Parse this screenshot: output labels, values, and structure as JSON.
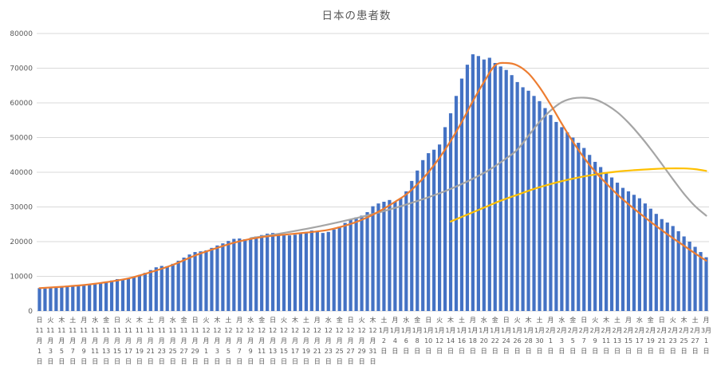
{
  "chart_data": {
    "type": "bar",
    "title": "日本の患者数",
    "ylim": [
      0,
      80000
    ],
    "y_tick_step": 10000,
    "y_ticks": [
      "0",
      "10000",
      "20000",
      "30000",
      "40000",
      "50000",
      "60000",
      "70000",
      "80000"
    ],
    "grid": true,
    "legend": "none",
    "colors": {
      "bar": "#4472C4",
      "orange_line": "#ED7D31",
      "gray_line": "#A5A5A5",
      "yellow_line": "#FFC000",
      "gridline": "#D9D9D9",
      "axis_text": "#595959",
      "title_text": "#595959"
    },
    "x_labels": [
      [
        "日",
        "11",
        "月",
        "1",
        "日"
      ],
      [
        "火",
        "11",
        "月",
        "3",
        "日"
      ],
      [
        "木",
        "11",
        "月",
        "5",
        "日"
      ],
      [
        "土",
        "11",
        "月",
        "7",
        "日"
      ],
      [
        "月",
        "11",
        "月",
        "9",
        "日"
      ],
      [
        "水",
        "11",
        "月",
        "11",
        "日"
      ],
      [
        "金",
        "11",
        "月",
        "13",
        "日"
      ],
      [
        "日",
        "11",
        "月",
        "15",
        "日"
      ],
      [
        "火",
        "11",
        "月",
        "17",
        "日"
      ],
      [
        "木",
        "11",
        "月",
        "19",
        "日"
      ],
      [
        "土",
        "11",
        "月",
        "21",
        "日"
      ],
      [
        "月",
        "11",
        "月",
        "23",
        "日"
      ],
      [
        "水",
        "11",
        "月",
        "25",
        "日"
      ],
      [
        "金",
        "11",
        "月",
        "27",
        "日"
      ],
      [
        "日",
        "11",
        "月",
        "29",
        "日"
      ],
      [
        "火",
        "12",
        "月",
        "1",
        "日"
      ],
      [
        "木",
        "12",
        "月",
        "3",
        "日"
      ],
      [
        "土",
        "12",
        "月",
        "5",
        "日"
      ],
      [
        "月",
        "12",
        "月",
        "7",
        "日"
      ],
      [
        "水",
        "12",
        "月",
        "9",
        "日"
      ],
      [
        "金",
        "12",
        "月",
        "11",
        "日"
      ],
      [
        "日",
        "12",
        "月",
        "13",
        "日"
      ],
      [
        "火",
        "12",
        "月",
        "15",
        "日"
      ],
      [
        "木",
        "12",
        "月",
        "17",
        "日"
      ],
      [
        "土",
        "12",
        "月",
        "19",
        "日"
      ],
      [
        "月",
        "12",
        "月",
        "21",
        "日"
      ],
      [
        "水",
        "12",
        "月",
        "23",
        "日"
      ],
      [
        "金",
        "12",
        "月",
        "25",
        "日"
      ],
      [
        "日",
        "12",
        "月",
        "27",
        "日"
      ],
      [
        "火",
        "12",
        "月",
        "29",
        "日"
      ],
      [
        "木",
        "12",
        "月",
        "31",
        "日"
      ],
      [
        "土",
        "1月",
        "2",
        "日"
      ],
      [
        "月",
        "1月",
        "4",
        "日"
      ],
      [
        "水",
        "1月",
        "6",
        "日"
      ],
      [
        "金",
        "1月",
        "8",
        "日"
      ],
      [
        "日",
        "1月",
        "10",
        "日"
      ],
      [
        "火",
        "1月",
        "12",
        "日"
      ],
      [
        "木",
        "1月",
        "14",
        "日"
      ],
      [
        "土",
        "1月",
        "16",
        "日"
      ],
      [
        "月",
        "1月",
        "18",
        "日"
      ],
      [
        "水",
        "1月",
        "20",
        "日"
      ],
      [
        "金",
        "1月",
        "22",
        "日"
      ],
      [
        "日",
        "1月",
        "24",
        "日"
      ],
      [
        "火",
        "1月",
        "26",
        "日"
      ],
      [
        "木",
        "1月",
        "28",
        "日"
      ],
      [
        "土",
        "1月",
        "30",
        "日"
      ],
      [
        "月",
        "2月",
        "1",
        "日"
      ],
      [
        "水",
        "2月",
        "3",
        "日"
      ],
      [
        "金",
        "2月",
        "5",
        "日"
      ],
      [
        "日",
        "2月",
        "7",
        "日"
      ],
      [
        "火",
        "2月",
        "9",
        "日"
      ],
      [
        "木",
        "2月",
        "11",
        "日"
      ],
      [
        "土",
        "2月",
        "13",
        "日"
      ],
      [
        "月",
        "2月",
        "15",
        "日"
      ],
      [
        "水",
        "2月",
        "17",
        "日"
      ],
      [
        "金",
        "2月",
        "19",
        "日"
      ],
      [
        "日",
        "2月",
        "21",
        "日"
      ],
      [
        "火",
        "2月",
        "23",
        "日"
      ],
      [
        "木",
        "2月",
        "25",
        "日"
      ],
      [
        "土",
        "2月",
        "27",
        "日"
      ],
      [
        "月",
        "3月",
        "1",
        "日"
      ]
    ],
    "bars": {
      "values": [
        6600,
        6500,
        6550,
        6700,
        6900,
        7100,
        7300,
        7500,
        7400,
        7500,
        7800,
        8100,
        8400,
        8800,
        9200,
        9100,
        9300,
        9800,
        10400,
        11000,
        11800,
        12600,
        13000,
        12900,
        13600,
        14500,
        15400,
        16300,
        17000,
        17200,
        17500,
        18200,
        18900,
        19500,
        20200,
        20800,
        20900,
        20700,
        21000,
        21500,
        21900,
        22300,
        22500,
        22200,
        21900,
        21800,
        22000,
        22300,
        22800,
        23200,
        23000,
        22500,
        22800,
        23500,
        24300,
        25400,
        26500,
        27000,
        27500,
        28500,
        30200,
        31000,
        31500,
        32000,
        31500,
        32500,
        34500,
        37500,
        40500,
        43500,
        45500,
        46500,
        48000,
        53000,
        57000,
        62000,
        67000,
        71000,
        74000,
        73500,
        72500,
        73000,
        71500,
        70500,
        69500,
        68000,
        66000,
        64500,
        63500,
        62000,
        60500,
        58500,
        56500,
        54500,
        53000,
        51500,
        50000,
        48500,
        47000,
        45000,
        43000,
        41500,
        40000,
        38500,
        37000,
        35500,
        34500,
        33500,
        32500,
        31000,
        29500,
        28000,
        26500,
        25500,
        24500,
        23000,
        21500,
        20000,
        18500,
        17000,
        15500
      ]
    },
    "series": [
      {
        "name": "gray-curve",
        "color": "#A5A5A5",
        "points": [
          [
            38,
            21000
          ],
          [
            44,
            22500
          ],
          [
            50,
            24300
          ],
          [
            56,
            26400
          ],
          [
            62,
            28800
          ],
          [
            68,
            31700
          ],
          [
            74,
            35200
          ],
          [
            80,
            39800
          ],
          [
            84,
            44000
          ],
          [
            86,
            46500
          ],
          [
            88,
            50500
          ],
          [
            90,
            54500
          ],
          [
            92,
            57800
          ],
          [
            94,
            60200
          ],
          [
            96,
            61300
          ],
          [
            98,
            61500
          ],
          [
            100,
            61000
          ],
          [
            102,
            59500
          ],
          [
            104,
            57300
          ],
          [
            106,
            54300
          ],
          [
            108,
            50700
          ],
          [
            110,
            46700
          ],
          [
            112,
            42400
          ],
          [
            114,
            38000
          ],
          [
            116,
            33800
          ],
          [
            118,
            30200
          ],
          [
            120,
            27500
          ]
        ]
      },
      {
        "name": "yellow-curve",
        "color": "#FFC000",
        "points": [
          [
            74,
            25800
          ],
          [
            77,
            27800
          ],
          [
            80,
            29800
          ],
          [
            83,
            31800
          ],
          [
            86,
            33500
          ],
          [
            89,
            35200
          ],
          [
            92,
            36600
          ],
          [
            95,
            37800
          ],
          [
            98,
            38800
          ],
          [
            101,
            39600
          ],
          [
            104,
            40200
          ],
          [
            107,
            40600
          ],
          [
            110,
            40900
          ],
          [
            113,
            41100
          ],
          [
            116,
            41100
          ],
          [
            118,
            40900
          ],
          [
            120,
            40400
          ]
        ]
      },
      {
        "name": "orange-curve",
        "color": "#ED7D31",
        "points": [
          [
            0,
            6600
          ],
          [
            4,
            7000
          ],
          [
            8,
            7500
          ],
          [
            12,
            8300
          ],
          [
            16,
            9400
          ],
          [
            20,
            11200
          ],
          [
            24,
            13300
          ],
          [
            28,
            16000
          ],
          [
            32,
            18200
          ],
          [
            36,
            20100
          ],
          [
            40,
            21300
          ],
          [
            44,
            22000
          ],
          [
            48,
            22600
          ],
          [
            52,
            23400
          ],
          [
            56,
            25100
          ],
          [
            59,
            27000
          ],
          [
            62,
            29500
          ],
          [
            64,
            31500
          ],
          [
            66,
            33600
          ],
          [
            68,
            36500
          ],
          [
            70,
            40000
          ],
          [
            72,
            44200
          ],
          [
            74,
            49000
          ],
          [
            76,
            54500
          ],
          [
            78,
            60500
          ],
          [
            80,
            66000
          ],
          [
            82,
            70800
          ],
          [
            84,
            71500
          ],
          [
            86,
            70800
          ],
          [
            88,
            68500
          ],
          [
            90,
            64500
          ],
          [
            92,
            59500
          ],
          [
            94,
            54000
          ],
          [
            96,
            48800
          ],
          [
            98,
            44200
          ],
          [
            100,
            40200
          ],
          [
            102,
            36800
          ],
          [
            104,
            33600
          ],
          [
            106,
            30800
          ],
          [
            108,
            28200
          ],
          [
            110,
            25700
          ],
          [
            112,
            23300
          ],
          [
            114,
            21000
          ],
          [
            116,
            18800
          ],
          [
            118,
            16600
          ],
          [
            120,
            14500
          ]
        ]
      }
    ]
  }
}
